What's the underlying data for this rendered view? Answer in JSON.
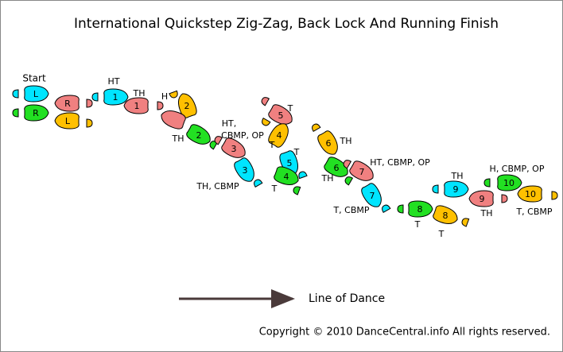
{
  "header": {
    "title": "International Quickstep Zig-Zag, Back Lock And Running Finish"
  },
  "start_label": "Start",
  "footprints": [
    {
      "label": "L",
      "color": "#00e5ff"
    },
    {
      "label": "R",
      "color": "#22e022"
    },
    {
      "label": "R",
      "color": "#f08080"
    },
    {
      "label": "L",
      "color": "#ffc000"
    },
    {
      "label": "1",
      "color": "#00e5ff"
    },
    {
      "label": "1",
      "color": "#f08080"
    },
    {
      "label": "2",
      "color": "#ffc000"
    },
    {
      "color": "#f08080"
    },
    {
      "label": "2",
      "color": "#22e022"
    },
    {
      "label": "3",
      "color": "#f08080"
    },
    {
      "label": "3",
      "color": "#00e5ff"
    },
    {
      "label": "5",
      "color": "#f08080"
    },
    {
      "label": "4",
      "color": "#ffc000"
    },
    {
      "label": "5",
      "color": "#00e5ff"
    },
    {
      "label": "4",
      "color": "#22e022"
    },
    {
      "label": "6",
      "color": "#ffc000"
    },
    {
      "label": "6",
      "color": "#22e022"
    },
    {
      "label": "7",
      "color": "#f08080"
    },
    {
      "label": "7",
      "color": "#00e5ff"
    },
    {
      "label": "8",
      "color": "#22e022"
    },
    {
      "label": "8",
      "color": "#ffc000"
    },
    {
      "label": "9",
      "color": "#00e5ff"
    },
    {
      "label": "9",
      "color": "#f08080"
    },
    {
      "label": "10",
      "color": "#22e022"
    },
    {
      "label": "10",
      "color": "#ffc000"
    }
  ],
  "annotations": [
    "HT",
    "TH",
    "H",
    "TH",
    "HT,",
    "CBMP, OP",
    "TH, CBMP",
    "T",
    "T",
    "T",
    "T",
    "TH",
    "TH",
    "HT, CBMP, OP",
    "T, CBMP",
    "T",
    "T",
    "TH",
    "TH",
    "H, CBMP, OP",
    "T, CBMP"
  ],
  "line_of_dance": "Line of Dance",
  "copyright": "Copyright © 2010 DanceCentral.info All rights reserved."
}
